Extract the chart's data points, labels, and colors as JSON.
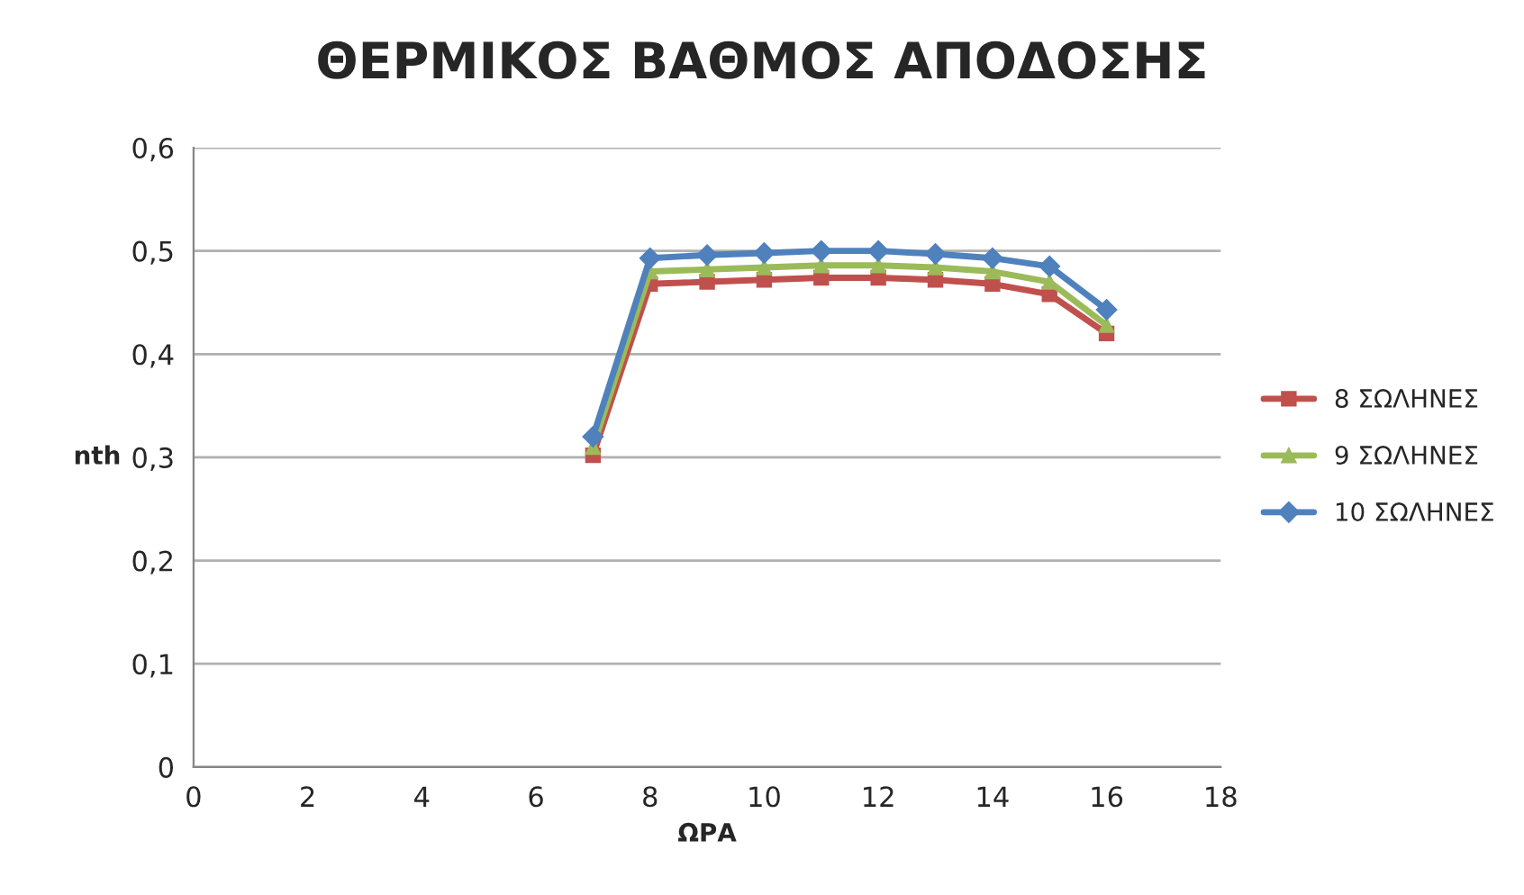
{
  "chart_data": {
    "type": "line",
    "title": "ΘΕΡΜΙΚΟΣ ΒΑΘΜΟΣ ΑΠΟΔΟΣΗΣ",
    "xlabel": "ΩΡΑ",
    "ylabel": "nth",
    "x": [
      7,
      8,
      9,
      10,
      11,
      12,
      13,
      14,
      15,
      16
    ],
    "series": [
      {
        "name": "8 ΣΩΛΗΝΕΣ",
        "color": "#c0504d",
        "marker": "square",
        "values": [
          0.302,
          0.468,
          0.47,
          0.472,
          0.474,
          0.474,
          0.472,
          0.468,
          0.458,
          0.42
        ]
      },
      {
        "name": "9 ΣΩΛΗΝΕΣ",
        "color": "#9bbb59",
        "marker": "triangle",
        "values": [
          0.31,
          0.48,
          0.482,
          0.484,
          0.486,
          0.486,
          0.484,
          0.48,
          0.47,
          0.428
        ]
      },
      {
        "name": "10 ΣΩΛΗΝΕΣ",
        "color": "#4f81bd",
        "marker": "diamond",
        "values": [
          0.32,
          0.493,
          0.496,
          0.498,
          0.5,
          0.5,
          0.497,
          0.493,
          0.485,
          0.443
        ]
      }
    ],
    "xlim": [
      0,
      18
    ],
    "xticks": [
      0,
      2,
      4,
      6,
      8,
      10,
      12,
      14,
      16,
      18
    ],
    "ylim": [
      0,
      0.6
    ],
    "yticks": [
      {
        "value": 0,
        "label": "0"
      },
      {
        "value": 0.1,
        "label": "0,1"
      },
      {
        "value": 0.2,
        "label": "0,2"
      },
      {
        "value": 0.3,
        "label": "0,3"
      },
      {
        "value": 0.4,
        "label": "0,4"
      },
      {
        "value": 0.5,
        "label": "0,5"
      },
      {
        "value": 0.6,
        "label": "0,6"
      }
    ],
    "grid": "y",
    "legend": "right"
  }
}
